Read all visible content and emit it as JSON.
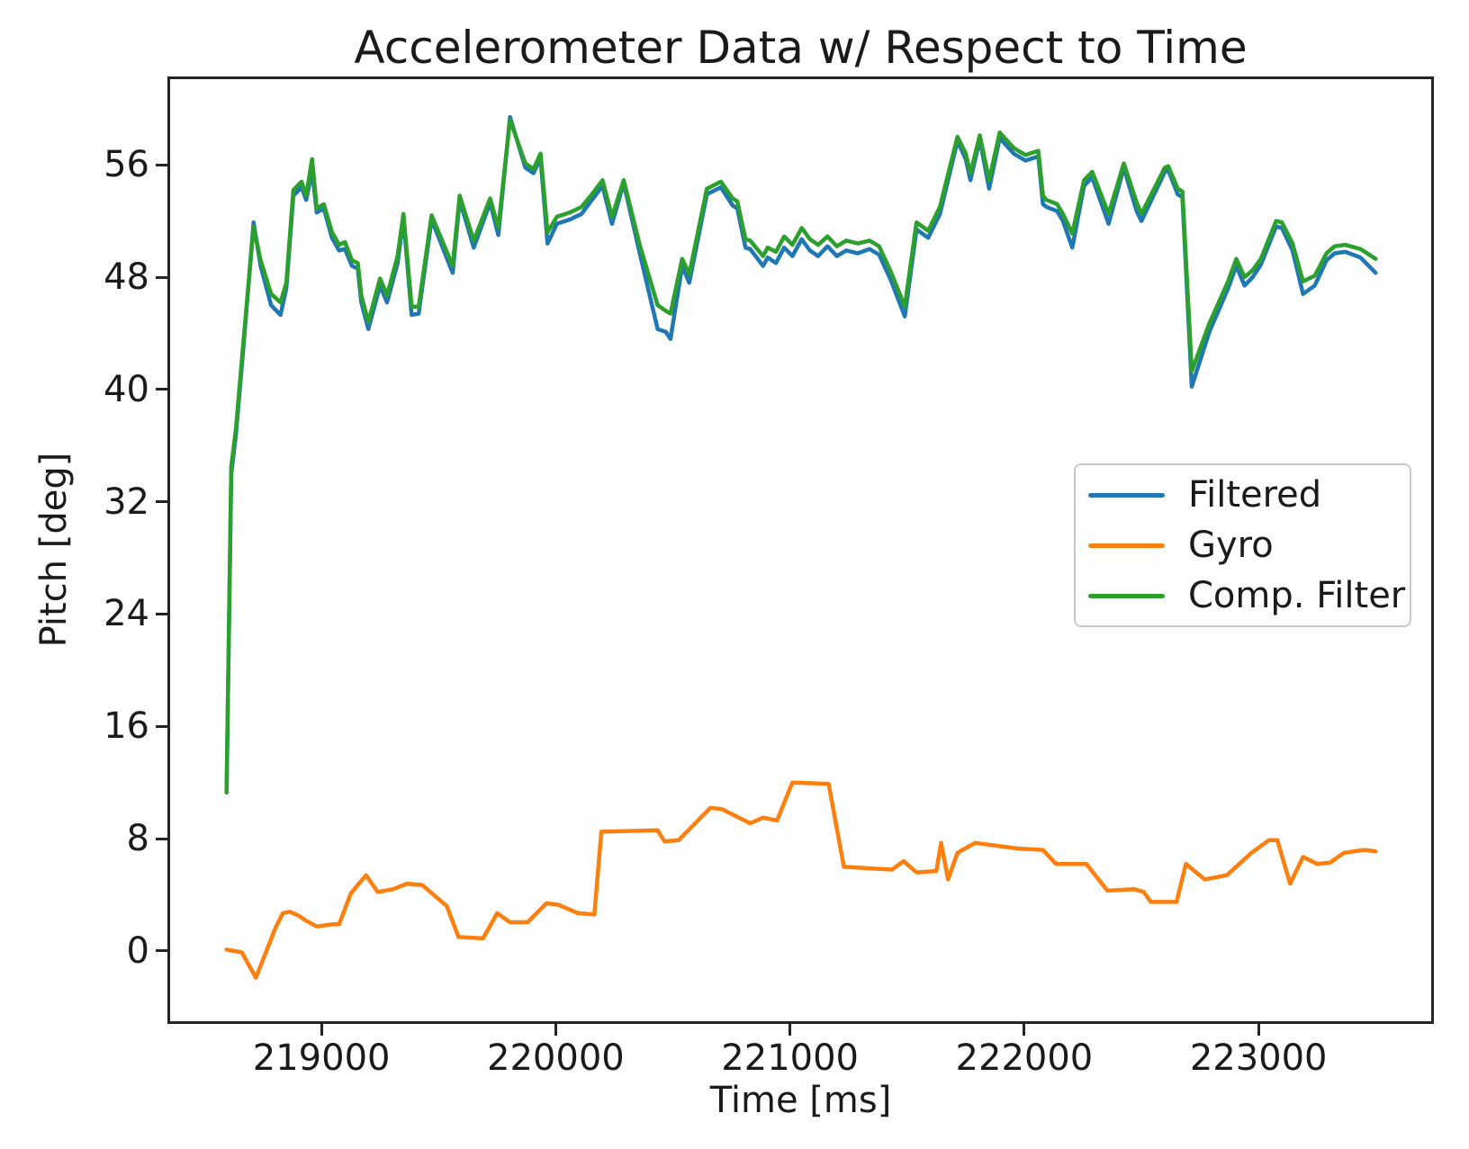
{
  "chart_data": {
    "type": "line",
    "title": "Accelerometer Data w/ Respect to Time",
    "xlabel": "Time [ms]",
    "ylabel": "Pitch [deg]",
    "xlim": [
      218354,
      223737
    ],
    "ylim": [
      -5.0,
      62.1
    ],
    "x_ticks": [
      219000,
      220000,
      221000,
      222000,
      223000
    ],
    "y_ticks": [
      0,
      8,
      16,
      24,
      32,
      40,
      48,
      56
    ],
    "grid": false,
    "legend_position": "center right",
    "series": [
      {
        "name": "Filtered",
        "color": "#1f77b4",
        "points": [
          [
            218595,
            11.3
          ],
          [
            218615,
            34.0
          ],
          [
            218635,
            36.8
          ],
          [
            218665,
            42.6
          ],
          [
            218710,
            51.9
          ],
          [
            218740,
            48.8
          ],
          [
            218785,
            46.0
          ],
          [
            218825,
            45.3
          ],
          [
            218850,
            47.2
          ],
          [
            218880,
            53.8
          ],
          [
            218915,
            54.4
          ],
          [
            218935,
            53.5
          ],
          [
            218960,
            55.6
          ],
          [
            218980,
            52.6
          ],
          [
            219010,
            52.9
          ],
          [
            219045,
            50.8
          ],
          [
            219075,
            49.9
          ],
          [
            219100,
            50.0
          ],
          [
            219130,
            48.8
          ],
          [
            219155,
            48.6
          ],
          [
            219170,
            46.2
          ],
          [
            219200,
            44.3
          ],
          [
            219250,
            47.4
          ],
          [
            219280,
            46.2
          ],
          [
            219325,
            49.0
          ],
          [
            219350,
            52.2
          ],
          [
            219385,
            45.3
          ],
          [
            219415,
            45.4
          ],
          [
            219470,
            52.1
          ],
          [
            219560,
            48.3
          ],
          [
            219590,
            53.5
          ],
          [
            219650,
            50.1
          ],
          [
            219720,
            53.3
          ],
          [
            219755,
            51.0
          ],
          [
            219805,
            59.4
          ],
          [
            219870,
            55.8
          ],
          [
            219905,
            55.4
          ],
          [
            219935,
            56.5
          ],
          [
            219965,
            50.4
          ],
          [
            220005,
            51.8
          ],
          [
            220060,
            52.1
          ],
          [
            220110,
            52.5
          ],
          [
            220150,
            53.4
          ],
          [
            220200,
            54.5
          ],
          [
            220240,
            51.8
          ],
          [
            220290,
            54.7
          ],
          [
            220360,
            49.6
          ],
          [
            220435,
            44.3
          ],
          [
            220470,
            44.1
          ],
          [
            220490,
            43.6
          ],
          [
            220540,
            48.8
          ],
          [
            220570,
            47.6
          ],
          [
            220645,
            53.9
          ],
          [
            220705,
            54.4
          ],
          [
            220755,
            53.1
          ],
          [
            220775,
            52.9
          ],
          [
            220810,
            50.1
          ],
          [
            220830,
            50.0
          ],
          [
            220885,
            48.8
          ],
          [
            220905,
            49.4
          ],
          [
            220940,
            49.0
          ],
          [
            220975,
            50.1
          ],
          [
            221010,
            49.5
          ],
          [
            221050,
            50.7
          ],
          [
            221085,
            49.9
          ],
          [
            221120,
            49.5
          ],
          [
            221160,
            50.2
          ],
          [
            221200,
            49.5
          ],
          [
            221240,
            49.9
          ],
          [
            221290,
            49.7
          ],
          [
            221340,
            50.0
          ],
          [
            221380,
            49.6
          ],
          [
            221430,
            47.8
          ],
          [
            221490,
            45.2
          ],
          [
            221540,
            51.4
          ],
          [
            221590,
            50.8
          ],
          [
            221640,
            52.5
          ],
          [
            221715,
            57.7
          ],
          [
            221750,
            56.4
          ],
          [
            221770,
            54.9
          ],
          [
            221810,
            57.8
          ],
          [
            221850,
            54.3
          ],
          [
            221895,
            57.9
          ],
          [
            221955,
            56.8
          ],
          [
            222005,
            56.3
          ],
          [
            222060,
            56.6
          ],
          [
            222080,
            53.2
          ],
          [
            222095,
            53.0
          ],
          [
            222140,
            52.7
          ],
          [
            222165,
            52.0
          ],
          [
            222205,
            50.1
          ],
          [
            222255,
            54.5
          ],
          [
            222290,
            55.1
          ],
          [
            222360,
            51.8
          ],
          [
            222425,
            55.8
          ],
          [
            222480,
            52.7
          ],
          [
            222500,
            52.0
          ],
          [
            222600,
            55.5
          ],
          [
            222615,
            55.6
          ],
          [
            222655,
            53.9
          ],
          [
            222675,
            53.7
          ],
          [
            222715,
            40.2
          ],
          [
            222790,
            44.1
          ],
          [
            222870,
            47.2
          ],
          [
            222905,
            48.8
          ],
          [
            222940,
            47.4
          ],
          [
            222975,
            48.0
          ],
          [
            223010,
            48.9
          ],
          [
            223075,
            51.6
          ],
          [
            223100,
            51.5
          ],
          [
            223145,
            49.9
          ],
          [
            223190,
            46.8
          ],
          [
            223240,
            47.4
          ],
          [
            223290,
            49.2
          ],
          [
            223325,
            49.7
          ],
          [
            223370,
            49.8
          ],
          [
            223435,
            49.4
          ],
          [
            223500,
            48.3
          ]
        ]
      },
      {
        "name": "Gyro",
        "color": "#ff7f0e",
        "points": [
          [
            218595,
            0.1
          ],
          [
            218660,
            -0.1
          ],
          [
            218720,
            -1.9
          ],
          [
            218805,
            1.7
          ],
          [
            218835,
            2.7
          ],
          [
            218865,
            2.8
          ],
          [
            218905,
            2.5
          ],
          [
            218930,
            2.2
          ],
          [
            218980,
            1.75
          ],
          [
            219045,
            1.9
          ],
          [
            219075,
            1.9
          ],
          [
            219125,
            4.1
          ],
          [
            219190,
            5.4
          ],
          [
            219240,
            4.2
          ],
          [
            219305,
            4.4
          ],
          [
            219365,
            4.8
          ],
          [
            219430,
            4.7
          ],
          [
            219535,
            3.2
          ],
          [
            219585,
            1.0
          ],
          [
            219690,
            0.9
          ],
          [
            219750,
            2.7
          ],
          [
            219805,
            2.05
          ],
          [
            219880,
            2.05
          ],
          [
            219960,
            3.4
          ],
          [
            220010,
            3.3
          ],
          [
            220095,
            2.7
          ],
          [
            220165,
            2.6
          ],
          [
            220195,
            8.5
          ],
          [
            220435,
            8.6
          ],
          [
            220465,
            7.8
          ],
          [
            220525,
            7.9
          ],
          [
            220660,
            10.2
          ],
          [
            220710,
            10.1
          ],
          [
            220830,
            9.1
          ],
          [
            220885,
            9.5
          ],
          [
            220945,
            9.3
          ],
          [
            221010,
            12.0
          ],
          [
            221165,
            11.9
          ],
          [
            221230,
            6.0
          ],
          [
            221435,
            5.8
          ],
          [
            221485,
            6.4
          ],
          [
            221540,
            5.6
          ],
          [
            221625,
            5.7
          ],
          [
            221645,
            7.7
          ],
          [
            221675,
            5.1
          ],
          [
            221715,
            7.0
          ],
          [
            221790,
            7.7
          ],
          [
            221975,
            7.3
          ],
          [
            222080,
            7.2
          ],
          [
            222135,
            6.2
          ],
          [
            222265,
            6.2
          ],
          [
            222355,
            4.3
          ],
          [
            222470,
            4.4
          ],
          [
            222510,
            4.2
          ],
          [
            222540,
            3.5
          ],
          [
            222650,
            3.5
          ],
          [
            222690,
            6.2
          ],
          [
            222770,
            5.1
          ],
          [
            222865,
            5.4
          ],
          [
            222970,
            7.0
          ],
          [
            223045,
            7.9
          ],
          [
            223080,
            7.9
          ],
          [
            223135,
            4.8
          ],
          [
            223190,
            6.7
          ],
          [
            223250,
            6.2
          ],
          [
            223305,
            6.3
          ],
          [
            223365,
            7.0
          ],
          [
            223450,
            7.2
          ],
          [
            223500,
            7.1
          ]
        ]
      },
      {
        "name": "Comp. Filter",
        "color": "#2ca02c",
        "points": [
          [
            218595,
            11.3
          ],
          [
            218615,
            34.5
          ],
          [
            218635,
            37.2
          ],
          [
            218665,
            43.0
          ],
          [
            218710,
            51.6
          ],
          [
            218740,
            49.2
          ],
          [
            218785,
            46.8
          ],
          [
            218825,
            46.2
          ],
          [
            218850,
            47.6
          ],
          [
            218880,
            54.2
          ],
          [
            218915,
            54.8
          ],
          [
            218935,
            53.8
          ],
          [
            218960,
            56.4
          ],
          [
            218980,
            52.9
          ],
          [
            219010,
            53.2
          ],
          [
            219045,
            51.2
          ],
          [
            219075,
            50.3
          ],
          [
            219100,
            50.5
          ],
          [
            219130,
            49.2
          ],
          [
            219155,
            49.0
          ],
          [
            219170,
            46.7
          ],
          [
            219200,
            44.8
          ],
          [
            219250,
            47.9
          ],
          [
            219280,
            46.7
          ],
          [
            219325,
            49.5
          ],
          [
            219350,
            52.5
          ],
          [
            219385,
            45.9
          ],
          [
            219415,
            45.9
          ],
          [
            219470,
            52.4
          ],
          [
            219560,
            48.8
          ],
          [
            219590,
            53.8
          ],
          [
            219650,
            50.6
          ],
          [
            219720,
            53.6
          ],
          [
            219755,
            51.5
          ],
          [
            219805,
            59.2
          ],
          [
            219870,
            56.1
          ],
          [
            219905,
            55.7
          ],
          [
            219935,
            56.8
          ],
          [
            219965,
            51.2
          ],
          [
            220005,
            52.3
          ],
          [
            220060,
            52.6
          ],
          [
            220110,
            53.0
          ],
          [
            220150,
            53.8
          ],
          [
            220200,
            54.9
          ],
          [
            220240,
            52.3
          ],
          [
            220290,
            54.9
          ],
          [
            220360,
            50.2
          ],
          [
            220435,
            46.0
          ],
          [
            220470,
            45.6
          ],
          [
            220490,
            45.4
          ],
          [
            220540,
            49.3
          ],
          [
            220570,
            48.2
          ],
          [
            220645,
            54.3
          ],
          [
            220705,
            54.8
          ],
          [
            220755,
            53.6
          ],
          [
            220775,
            53.4
          ],
          [
            220810,
            50.7
          ],
          [
            220830,
            50.6
          ],
          [
            220885,
            49.5
          ],
          [
            220905,
            50.1
          ],
          [
            220940,
            49.8
          ],
          [
            220975,
            50.9
          ],
          [
            221010,
            50.3
          ],
          [
            221050,
            51.5
          ],
          [
            221085,
            50.7
          ],
          [
            221120,
            50.3
          ],
          [
            221160,
            50.9
          ],
          [
            221200,
            50.2
          ],
          [
            221240,
            50.6
          ],
          [
            221290,
            50.4
          ],
          [
            221340,
            50.6
          ],
          [
            221380,
            50.2
          ],
          [
            221430,
            48.4
          ],
          [
            221490,
            45.9
          ],
          [
            221540,
            51.9
          ],
          [
            221590,
            51.3
          ],
          [
            221640,
            53.0
          ],
          [
            221715,
            58.0
          ],
          [
            221750,
            56.8
          ],
          [
            221770,
            55.4
          ],
          [
            221810,
            58.1
          ],
          [
            221850,
            54.9
          ],
          [
            221895,
            58.3
          ],
          [
            221955,
            57.2
          ],
          [
            222005,
            56.7
          ],
          [
            222060,
            57.0
          ],
          [
            222080,
            53.8
          ],
          [
            222095,
            53.5
          ],
          [
            222140,
            53.2
          ],
          [
            222165,
            52.5
          ],
          [
            222205,
            51.1
          ],
          [
            222255,
            54.9
          ],
          [
            222290,
            55.5
          ],
          [
            222360,
            52.5
          ],
          [
            222425,
            56.1
          ],
          [
            222480,
            53.3
          ],
          [
            222500,
            52.5
          ],
          [
            222600,
            55.8
          ],
          [
            222615,
            55.9
          ],
          [
            222655,
            54.3
          ],
          [
            222675,
            54.1
          ],
          [
            222715,
            41.3
          ],
          [
            222790,
            44.7
          ],
          [
            222870,
            47.7
          ],
          [
            222905,
            49.3
          ],
          [
            222940,
            48.0
          ],
          [
            222975,
            48.5
          ],
          [
            223010,
            49.3
          ],
          [
            223075,
            52.0
          ],
          [
            223100,
            51.9
          ],
          [
            223145,
            50.4
          ],
          [
            223190,
            47.7
          ],
          [
            223240,
            48.1
          ],
          [
            223290,
            49.7
          ],
          [
            223325,
            50.2
          ],
          [
            223370,
            50.3
          ],
          [
            223435,
            50.0
          ],
          [
            223500,
            49.3
          ]
        ]
      }
    ]
  }
}
